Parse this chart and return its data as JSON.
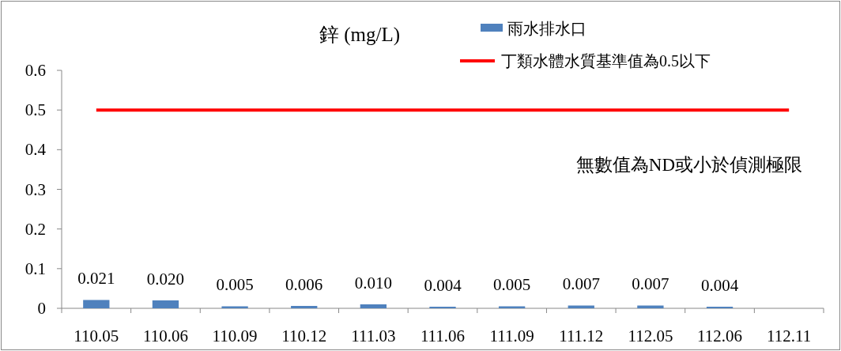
{
  "chart_data": {
    "type": "bar",
    "title": "鋅 (mg/L)",
    "categories": [
      "110.05",
      "110.06",
      "110.09",
      "110.12",
      "111.03",
      "111.06",
      "111.09",
      "111.12",
      "112.05",
      "112.06",
      "112.11"
    ],
    "series": [
      {
        "name": "雨水排水口",
        "color": "#4f81bd",
        "values": [
          0.021,
          0.02,
          0.005,
          0.006,
          0.01,
          0.004,
          0.005,
          0.007,
          0.007,
          0.004,
          null
        ],
        "value_labels": [
          "0.021",
          "0.020",
          "0.005",
          "0.006",
          "0.010",
          "0.004",
          "0.005",
          "0.007",
          "0.007",
          "0.004",
          null
        ]
      },
      {
        "name": "丁類水體水質基準值為0.5以下",
        "type": "line",
        "color": "#ff0000",
        "values": [
          0.5,
          0.5,
          0.5,
          0.5,
          0.5,
          0.5,
          0.5,
          0.5,
          0.5,
          0.5,
          0.5
        ]
      }
    ],
    "ylim": [
      0,
      0.6
    ],
    "yticks": [
      0,
      0.1,
      0.2,
      0.3,
      0.4,
      0.5,
      0.6
    ],
    "grid": false,
    "legend": "top right",
    "marker": "none",
    "annotations": [
      "無數值為ND或小於偵測極限"
    ]
  }
}
